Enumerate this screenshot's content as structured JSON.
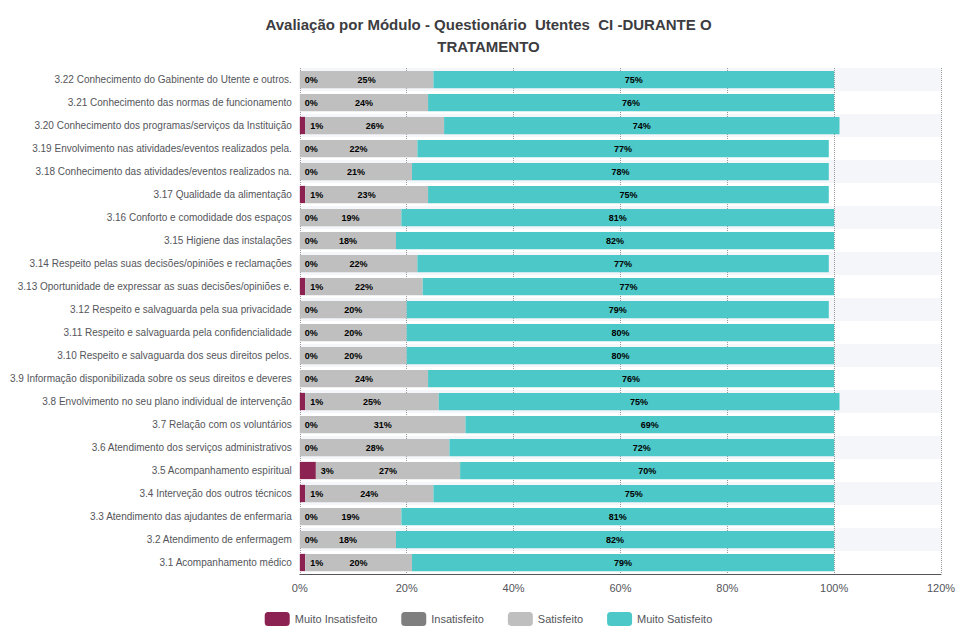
{
  "chart_data": {
    "type": "bar",
    "orientation": "horizontal",
    "stacked": true,
    "title": "Avaliação por Módulo - Questionário  Utentes  CI -DURANTE O\nTRATAMENTO",
    "categories": [
      "3.22 Conhecimento do Gabinente do Utente e outros.",
      "3.21 Conhecimento das normas de funcionamento",
      "3.20 Conhecimento dos programas/serviços da Instituição",
      "3.19 Envolvimento nas atividades/eventos realizados pela.",
      "3.18 Conhecimento das atividades/eventos realizados na.",
      "3.17 Qualidade da alimentação",
      "3.16 Conforto e comodidade dos espaços",
      "3.15 Higiene das instalações",
      "3.14 Respeito pelas suas decisões/opiniões e reclamações",
      "3.13 Oportunidade de expressar as suas decisões/opiniões e.",
      "3.12 Respeito e salvaguarda pela sua privacidade",
      "3.11 Respeito e salvaguarda pela confidencialidade",
      "3.10 Respeito e salvaguarda dos seus direitos pelos.",
      "3.9 Informação disponibilizada sobre os seus direitos e deveres",
      "3.8 Envolvimento no seu plano individual de intervenção",
      "3.7 Relação com os voluntários",
      "3.6 Atendimento dos serviços administrativos",
      "3.5 Acompanhamento espiritual",
      "3.4 Interveção dos outros técnicos",
      "3.3 Atendimento das ajudantes de enfermaria",
      "3.2 Atendimento de enfermagem",
      "3.1 Acompanhamento médico"
    ],
    "series": [
      {
        "name": "Muito Insatisfeito",
        "color": "#8B2252",
        "values": [
          0,
          0,
          1,
          0,
          0,
          1,
          0,
          0,
          0,
          1,
          0,
          0,
          0,
          0,
          1,
          0,
          0,
          3,
          1,
          0,
          0,
          1
        ],
        "value_labels": [
          "0%",
          "0%",
          "1%",
          "0%",
          "0%",
          "1%",
          "0%",
          "0%",
          "0%",
          "1%",
          "0%",
          "0%",
          "0%",
          "0%",
          "1%",
          "0%",
          "0%",
          "3%",
          "1%",
          "0%",
          "0%",
          "1%"
        ]
      },
      {
        "name": "Insatisfeito",
        "color": "#7F7F7F",
        "values": [
          0,
          0,
          0,
          0,
          0,
          0,
          0,
          0,
          0,
          0,
          0,
          0,
          0,
          0,
          0,
          0,
          0,
          0,
          0,
          0,
          0,
          0
        ]
      },
      {
        "name": "Satisfeito",
        "color": "#BFBFBF",
        "values": [
          25,
          24,
          26,
          22,
          21,
          23,
          19,
          18,
          22,
          22,
          20,
          20,
          20,
          24,
          25,
          31,
          28,
          27,
          24,
          19,
          18,
          20
        ],
        "value_labels": [
          "25%",
          "24%",
          "26%",
          "22%",
          "21%",
          "23%",
          "19%",
          "18%",
          "22%",
          "22%",
          "20%",
          "20%",
          "20%",
          "24%",
          "25%",
          "31%",
          "28%",
          "27%",
          "24%",
          "19%",
          "18%",
          "20%"
        ]
      },
      {
        "name": "Muito Satisfeito",
        "color": "#4DC8C8",
        "values": [
          75,
          76,
          74,
          77,
          78,
          75,
          81,
          82,
          77,
          77,
          79,
          80,
          80,
          76,
          75,
          69,
          72,
          70,
          75,
          81,
          82,
          79
        ],
        "value_labels": [
          "75%",
          "76%",
          "74%",
          "77%",
          "78%",
          "75%",
          "81%",
          "82%",
          "77%",
          "77%",
          "79%",
          "80%",
          "80%",
          "76%",
          "75%",
          "69%",
          "72%",
          "70%",
          "75%",
          "81%",
          "82%",
          "79%"
        ]
      }
    ],
    "xlim": [
      0,
      120
    ],
    "xticks": [
      {
        "value": 0,
        "label": "0%"
      },
      {
        "value": 20,
        "label": "20%"
      },
      {
        "value": 40,
        "label": "40%"
      },
      {
        "value": 60,
        "label": "60%"
      },
      {
        "value": 80,
        "label": "80%"
      },
      {
        "value": 100,
        "label": "100%"
      },
      {
        "value": 120,
        "label": "120%"
      }
    ],
    "grid": true,
    "legend": "bottom",
    "data_labels": true
  }
}
